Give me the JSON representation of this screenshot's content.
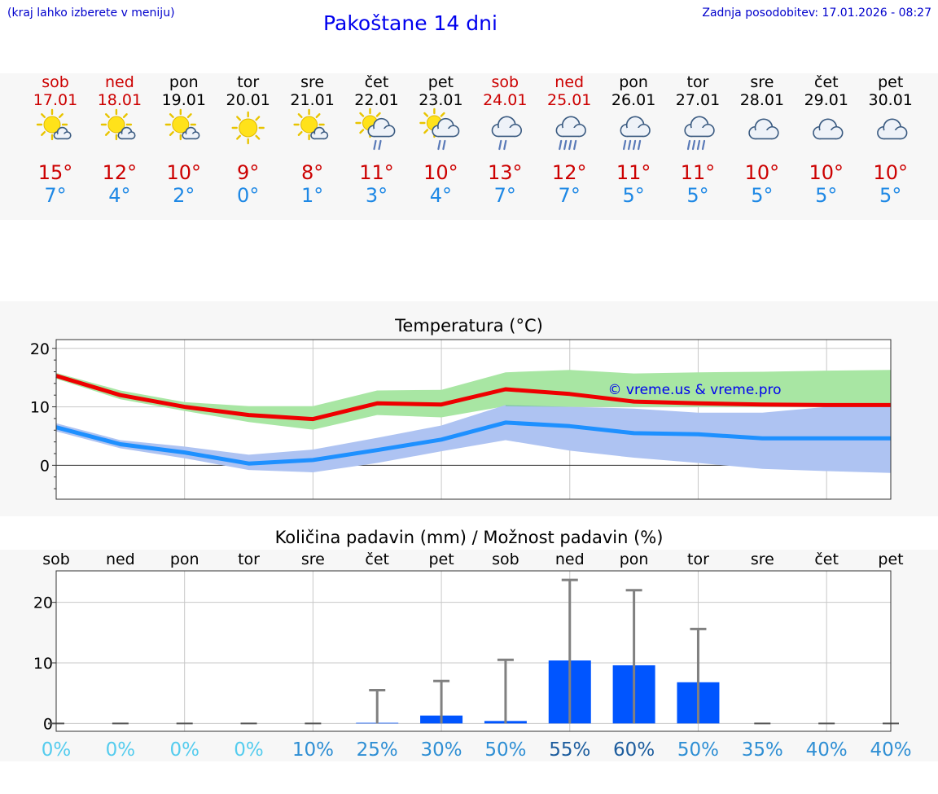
{
  "header": {
    "hint": "(kraj lahko izberete v meniju)",
    "title": "Pakoštane 14 dni",
    "updated": "Zadnja posodobitev: 17.01.2026 - 08:27"
  },
  "colors": {
    "weekend": "#cc0000",
    "weekday": "#000000",
    "tmax": "#cc0000",
    "tmin": "#1e88e5",
    "max_line": "#ee0000",
    "min_line": "#1e90ff",
    "max_band": "#a8e6a3",
    "min_band": "#aec3f2",
    "overlap_band": "#7fc6a4",
    "bar": "#0055ff",
    "error": "#808080"
  },
  "forecast": [
    {
      "day": "sob",
      "date": "17.01",
      "icon": "partly-sunny-icon",
      "tmax": "15°",
      "tmin": "7°",
      "weekend": true
    },
    {
      "day": "ned",
      "date": "18.01",
      "icon": "partly-sunny-icon",
      "tmax": "12°",
      "tmin": "4°",
      "weekend": true
    },
    {
      "day": "pon",
      "date": "19.01",
      "icon": "partly-sunny-icon",
      "tmax": "10°",
      "tmin": "2°",
      "weekend": false
    },
    {
      "day": "tor",
      "date": "20.01",
      "icon": "sunny-icon",
      "tmax": "9°",
      "tmin": "0°",
      "weekend": false
    },
    {
      "day": "sre",
      "date": "21.01",
      "icon": "partly-sunny-icon",
      "tmax": "8°",
      "tmin": "1°",
      "weekend": false
    },
    {
      "day": "čet",
      "date": "22.01",
      "icon": "sun-cloud-rain-icon",
      "tmax": "11°",
      "tmin": "3°",
      "weekend": false
    },
    {
      "day": "pet",
      "date": "23.01",
      "icon": "sun-cloud-rain-icon",
      "tmax": "10°",
      "tmin": "4°",
      "weekend": false
    },
    {
      "day": "sob",
      "date": "24.01",
      "icon": "cloud-rain-icon",
      "tmax": "13°",
      "tmin": "7°",
      "weekend": true
    },
    {
      "day": "ned",
      "date": "25.01",
      "icon": "cloud-heavy-rain-icon",
      "tmax": "12°",
      "tmin": "7°",
      "weekend": true
    },
    {
      "day": "pon",
      "date": "26.01",
      "icon": "cloud-heavy-rain-icon",
      "tmax": "11°",
      "tmin": "5°",
      "weekend": false
    },
    {
      "day": "tor",
      "date": "27.01",
      "icon": "cloud-heavy-rain-icon",
      "tmax": "11°",
      "tmin": "5°",
      "weekend": false
    },
    {
      "day": "sre",
      "date": "28.01",
      "icon": "cloudy-icon",
      "tmax": "10°",
      "tmin": "5°",
      "weekend": false
    },
    {
      "day": "čet",
      "date": "29.01",
      "icon": "cloudy-icon",
      "tmax": "10°",
      "tmin": "5°",
      "weekend": false
    },
    {
      "day": "pet",
      "date": "30.01",
      "icon": "cloudy-icon",
      "tmax": "10°",
      "tmin": "5°",
      "weekend": false
    }
  ],
  "chart_data": [
    {
      "type": "line",
      "title": "Temperatura (°C)",
      "watermark": "© vreme.us & vreme.pro",
      "x": [
        0,
        1,
        2,
        3,
        4,
        5,
        6,
        7,
        8,
        9,
        10,
        11,
        12,
        13
      ],
      "ylim": [
        -5.8,
        21.5
      ],
      "yticks": [
        0,
        10,
        20
      ],
      "grid": true,
      "series": [
        {
          "name": "max",
          "values": [
            15.3,
            12.0,
            10.0,
            8.6,
            7.9,
            10.6,
            10.4,
            13.0,
            12.2,
            10.9,
            10.6,
            10.4,
            10.3,
            10.3
          ]
        },
        {
          "name": "min",
          "values": [
            6.5,
            3.6,
            2.2,
            0.3,
            0.9,
            2.6,
            4.4,
            7.3,
            6.7,
            5.5,
            5.3,
            4.6,
            4.6,
            4.6
          ]
        },
        {
          "name": "max_range_upper",
          "values": [
            15.8,
            12.8,
            10.8,
            10.1,
            10.1,
            12.8,
            12.9,
            15.9,
            16.3,
            15.7,
            15.9,
            16.0,
            16.2,
            16.3
          ]
        },
        {
          "name": "max_range_lower",
          "values": [
            14.8,
            11.3,
            9.3,
            7.4,
            6.1,
            8.6,
            8.2,
            10.1,
            10.0,
            10.0,
            10.0,
            10.0,
            10.0,
            10.0
          ]
        },
        {
          "name": "min_range_upper",
          "values": [
            7.2,
            4.3,
            3.2,
            1.8,
            2.7,
            4.7,
            6.8,
            10.3,
            10.0,
            9.7,
            9.0,
            9.0,
            10.0,
            10.0
          ]
        },
        {
          "name": "min_range_lower",
          "values": [
            5.8,
            2.9,
            1.2,
            -0.8,
            -1.2,
            0.4,
            2.4,
            4.3,
            2.5,
            1.3,
            0.4,
            -0.6,
            -1.0,
            -1.3
          ]
        }
      ]
    },
    {
      "type": "bar",
      "title": "Količina padavin (mm) / Možnost padavin (%)",
      "categories": [
        "sob",
        "ned",
        "pon",
        "tor",
        "sre",
        "čet",
        "pet",
        "sob",
        "ned",
        "pon",
        "tor",
        "sre",
        "čet",
        "pet"
      ],
      "ylim": [
        -1.3,
        25.2
      ],
      "yticks": [
        0,
        10,
        20
      ],
      "grid": true,
      "values": [
        0,
        0,
        0,
        0,
        0,
        0.1,
        1.3,
        0.4,
        10.4,
        9.6,
        6.8,
        0,
        0,
        0
      ],
      "error_upper": [
        0,
        0,
        0,
        0,
        0,
        5.5,
        7.0,
        10.5,
        23.7,
        22.0,
        15.6,
        0,
        0,
        0
      ],
      "probability": [
        "0%",
        "0%",
        "0%",
        "0%",
        "10%",
        "25%",
        "30%",
        "50%",
        "55%",
        "60%",
        "50%",
        "35%",
        "40%",
        "40%"
      ],
      "probability_colors": [
        "#55ccee",
        "#55ccee",
        "#55ccee",
        "#55ccee",
        "#2f8fd4",
        "#2f8fd4",
        "#2f8fd4",
        "#2f8fd4",
        "#1d5d9e",
        "#1d5d9e",
        "#2f8fd4",
        "#2f8fd4",
        "#2f8fd4",
        "#2f8fd4"
      ]
    }
  ]
}
